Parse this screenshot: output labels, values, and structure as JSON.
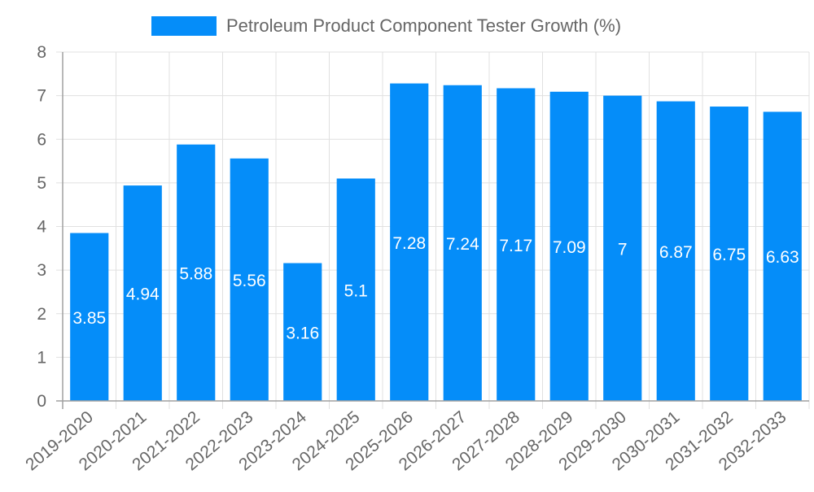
{
  "chart_data": {
    "type": "bar",
    "title": "",
    "legend": [
      {
        "label": "Petroleum Product Component Tester Growth (%)",
        "color": "#058DF9"
      }
    ],
    "legend_position": "top",
    "categories": [
      "2019-2020",
      "2020-2021",
      "2021-2022",
      "2022-2023",
      "2023-2024",
      "2024-2025",
      "2025-2026",
      "2026-2027",
      "2027-2028",
      "2028-2029",
      "2029-2030",
      "2030-2031",
      "2031-2032",
      "2032-2033"
    ],
    "series": [
      {
        "name": "Petroleum Product Component Tester Growth (%)",
        "values": [
          3.85,
          4.94,
          5.88,
          5.56,
          3.16,
          5.1,
          7.28,
          7.24,
          7.17,
          7.09,
          7,
          6.87,
          6.75,
          6.63
        ]
      }
    ],
    "data_labels": [
      "3.85",
      "4.94",
      "5.88",
      "5.56",
      "3.16",
      "5.1",
      "7.28",
      "7.24",
      "7.17",
      "7.09",
      "7",
      "6.87",
      "6.75",
      "6.63"
    ],
    "xlabel": "",
    "ylabel": "",
    "ylim": [
      0,
      8
    ],
    "yticks": [
      "0",
      "1",
      "2",
      "3",
      "4",
      "5",
      "6",
      "7",
      "8"
    ],
    "grid": true,
    "colors": {
      "bar": "#058DF9",
      "grid": "#E0E0E0",
      "axis": "#A0A0A0",
      "tick_text": "#666666",
      "label_text": "#FFFFFF"
    }
  }
}
